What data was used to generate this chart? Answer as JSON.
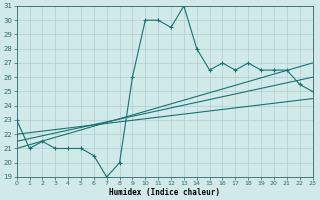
{
  "xlabel": "Humidex (Indice chaleur)",
  "xlim": [
    0,
    23
  ],
  "ylim": [
    19,
    31
  ],
  "yticks": [
    19,
    20,
    21,
    22,
    23,
    24,
    25,
    26,
    27,
    28,
    29,
    30,
    31
  ],
  "xticks": [
    0,
    1,
    2,
    3,
    4,
    5,
    6,
    7,
    8,
    9,
    10,
    11,
    12,
    13,
    14,
    15,
    16,
    17,
    18,
    19,
    20,
    21,
    22,
    23
  ],
  "background_color": "#d0eaea",
  "grid_color": "#b0cccc",
  "line_color": "#1a7070",
  "main_line": {
    "x": [
      0,
      1,
      2,
      3,
      4,
      5,
      6,
      7,
      8,
      9,
      10,
      11,
      12,
      13,
      14,
      15,
      16,
      17,
      18,
      19,
      20,
      21,
      22,
      23
    ],
    "y": [
      23,
      21,
      21.5,
      21,
      21,
      21,
      20.5,
      19,
      20,
      26,
      30,
      30,
      29.5,
      31,
      28,
      26.5,
      27,
      26.5,
      27,
      26.5,
      26.5,
      26.5,
      25.5,
      25
    ]
  },
  "trend_lines": [
    {
      "x": [
        0,
        23
      ],
      "y": [
        21,
        27
      ]
    },
    {
      "x": [
        0,
        23
      ],
      "y": [
        21.5,
        26
      ]
    },
    {
      "x": [
        0,
        23
      ],
      "y": [
        22,
        24.5
      ]
    }
  ]
}
